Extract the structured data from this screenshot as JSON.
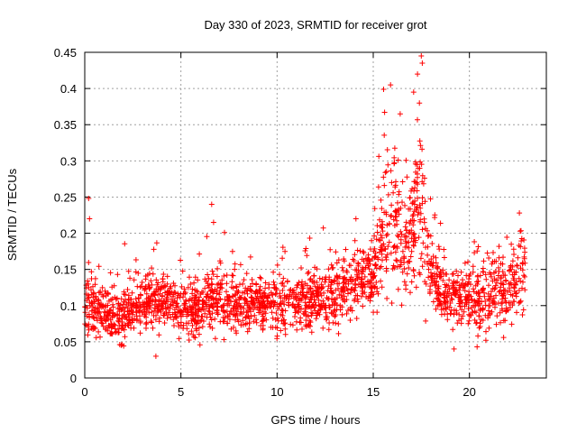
{
  "chart_data": {
    "type": "scatter",
    "title": "Day 330 of 2023, SRMTID for receiver grot",
    "xlabel": "GPS time / hours",
    "ylabel": "SRMTID / TECUs",
    "xlim": [
      0,
      24
    ],
    "ylim": [
      0,
      0.45
    ],
    "xticks": [
      "0",
      "5",
      "10",
      "15",
      "20"
    ],
    "xtick_values": [
      0,
      5,
      10,
      15,
      20
    ],
    "yticks": [
      "0",
      "0.05",
      "0.1",
      "0.15",
      "0.2",
      "0.25",
      "0.3",
      "0.35",
      "0.4",
      "0.45"
    ],
    "ytick_values": [
      0,
      0.05,
      0.1,
      0.15,
      0.2,
      0.25,
      0.3,
      0.35,
      0.4,
      0.45
    ],
    "grid": true,
    "marker": "+",
    "color": "#ff0000",
    "x_extent": [
      0,
      22.9
    ],
    "profile": [
      {
        "x": 0.0,
        "y": 0.1,
        "spread": 0.035
      },
      {
        "x": 1.0,
        "y": 0.09,
        "spread": 0.03
      },
      {
        "x": 2.0,
        "y": 0.085,
        "spread": 0.03
      },
      {
        "x": 3.0,
        "y": 0.1,
        "spread": 0.035
      },
      {
        "x": 4.0,
        "y": 0.11,
        "spread": 0.035
      },
      {
        "x": 5.0,
        "y": 0.09,
        "spread": 0.03
      },
      {
        "x": 6.0,
        "y": 0.1,
        "spread": 0.035
      },
      {
        "x": 7.0,
        "y": 0.11,
        "spread": 0.04
      },
      {
        "x": 8.0,
        "y": 0.1,
        "spread": 0.035
      },
      {
        "x": 9.0,
        "y": 0.105,
        "spread": 0.035
      },
      {
        "x": 10.0,
        "y": 0.1,
        "spread": 0.035
      },
      {
        "x": 11.0,
        "y": 0.105,
        "spread": 0.035
      },
      {
        "x": 12.0,
        "y": 0.11,
        "spread": 0.035
      },
      {
        "x": 13.0,
        "y": 0.115,
        "spread": 0.04
      },
      {
        "x": 14.0,
        "y": 0.13,
        "spread": 0.04
      },
      {
        "x": 15.0,
        "y": 0.14,
        "spread": 0.04
      },
      {
        "x": 15.6,
        "y": 0.2,
        "spread": 0.07
      },
      {
        "x": 16.2,
        "y": 0.22,
        "spread": 0.08
      },
      {
        "x": 16.8,
        "y": 0.17,
        "spread": 0.05
      },
      {
        "x": 17.4,
        "y": 0.27,
        "spread": 0.1
      },
      {
        "x": 18.0,
        "y": 0.14,
        "spread": 0.04
      },
      {
        "x": 19.0,
        "y": 0.11,
        "spread": 0.035
      },
      {
        "x": 20.0,
        "y": 0.11,
        "spread": 0.035
      },
      {
        "x": 21.0,
        "y": 0.12,
        "spread": 0.04
      },
      {
        "x": 22.0,
        "y": 0.12,
        "spread": 0.04
      },
      {
        "x": 22.9,
        "y": 0.15,
        "spread": 0.045
      }
    ],
    "notable_points": [
      {
        "x": 0.2,
        "y": 0.248
      },
      {
        "x": 0.25,
        "y": 0.22
      },
      {
        "x": 6.6,
        "y": 0.24
      },
      {
        "x": 6.7,
        "y": 0.215
      },
      {
        "x": 14.1,
        "y": 0.22
      },
      {
        "x": 15.9,
        "y": 0.405
      },
      {
        "x": 16.4,
        "y": 0.365
      },
      {
        "x": 17.1,
        "y": 0.395
      },
      {
        "x": 17.3,
        "y": 0.42
      },
      {
        "x": 17.5,
        "y": 0.445
      },
      {
        "x": 17.55,
        "y": 0.435
      },
      {
        "x": 17.4,
        "y": 0.38
      },
      {
        "x": 22.6,
        "y": 0.228
      },
      {
        "x": 3.7,
        "y": 0.03
      },
      {
        "x": 19.2,
        "y": 0.04
      },
      {
        "x": 20.4,
        "y": 0.043
      }
    ],
    "num_points": 2200
  }
}
